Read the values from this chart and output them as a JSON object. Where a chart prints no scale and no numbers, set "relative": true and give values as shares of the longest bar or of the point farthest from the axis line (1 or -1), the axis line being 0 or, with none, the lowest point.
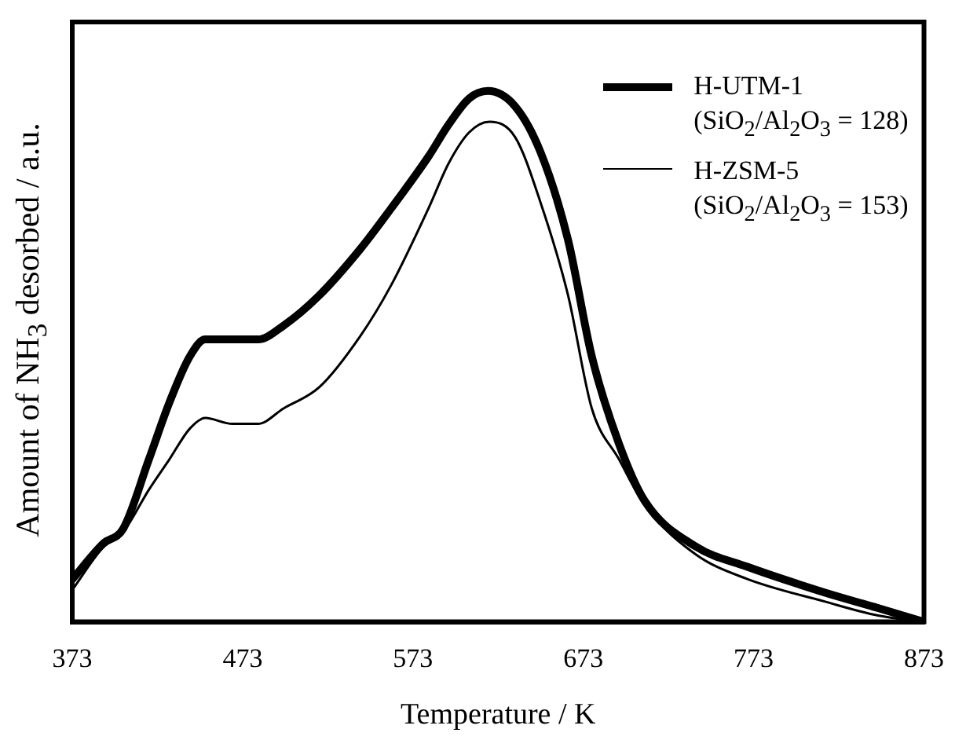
{
  "chart_data": {
    "type": "line",
    "relative": true,
    "xlabel": "Temperature / K",
    "ylabel": "Amount of NH$_{3}$ desorbed / a.u.",
    "xlim": [
      373,
      873
    ],
    "xticks": [
      373,
      473,
      573,
      673,
      773,
      873
    ],
    "grid": false,
    "legend": "top right",
    "marker": "none",
    "line_style": "solid",
    "series": [
      {
        "name": "H-UTM-1\n(SiO$_{2}$/Al$_{2}$O$_{3}$ = 128)",
        "color": "#000000",
        "x": [
          373,
          391,
          403,
          418,
          430,
          442,
          451,
          482,
          497,
          518,
          542,
          560,
          582,
          594,
          606,
          617,
          633,
          648,
          664,
          678,
          694,
          709,
          739,
          769,
          815,
          846,
          873
        ],
        "values": [
          0.08,
          0.147,
          0.176,
          0.306,
          0.413,
          0.5,
          0.532,
          0.532,
          0.558,
          0.615,
          0.702,
          0.778,
          0.876,
          0.937,
          0.986,
          1,
          0.971,
          0.884,
          0.72,
          0.5,
          0.335,
          0.228,
          0.142,
          0.104,
          0.055,
          0.026,
          0
        ]
      },
      {
        "name": "H-ZSM-5\n(SiO$_{2}$/Al$_{2}$O$_{3}$ = 153)",
        "color": "#000000",
        "x": [
          373,
          391,
          403,
          418,
          430,
          442,
          451,
          467,
          482,
          497,
          518,
          542,
          560,
          582,
          594,
          606,
          618,
          633,
          648,
          664,
          678,
          694,
          709,
          739,
          769,
          815,
          846,
          873
        ],
        "values": [
          0.06,
          0.14,
          0.17,
          0.249,
          0.306,
          0.364,
          0.384,
          0.373,
          0.373,
          0.402,
          0.442,
          0.538,
          0.633,
          0.778,
          0.864,
          0.922,
          0.942,
          0.913,
          0.789,
          0.616,
          0.402,
          0.306,
          0.22,
          0.127,
          0.081,
          0.038,
          0.012,
          0
        ]
      }
    ]
  }
}
